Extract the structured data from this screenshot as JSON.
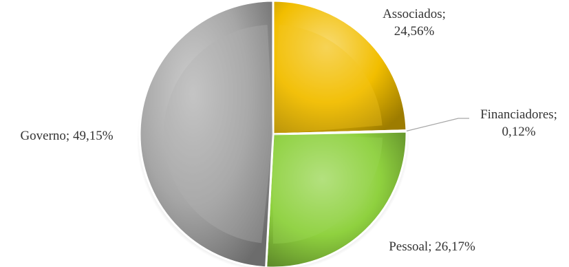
{
  "chart_data": {
    "type": "pie",
    "title": "",
    "slices": [
      {
        "name": "Associados",
        "value": 24.56,
        "label_lines": [
          "Associados;",
          "24,56%"
        ],
        "color": "#F2BE00"
      },
      {
        "name": "Financiadores",
        "value": 0.12,
        "label_lines": [
          "Financiadores;",
          "0,12%"
        ],
        "color": "#D9D9D9"
      },
      {
        "name": "Pessoal",
        "value": 26.17,
        "label_lines": [
          "Pessoal; 26,17%"
        ],
        "color": "#8FD13F"
      },
      {
        "name": "Governo",
        "value": 49.15,
        "label_lines": [
          "Governo; 49,15%"
        ],
        "color": "#A6A6A6"
      }
    ],
    "start": "top",
    "direction": "clockwise",
    "legend": "none",
    "style": "beveled 3d"
  }
}
